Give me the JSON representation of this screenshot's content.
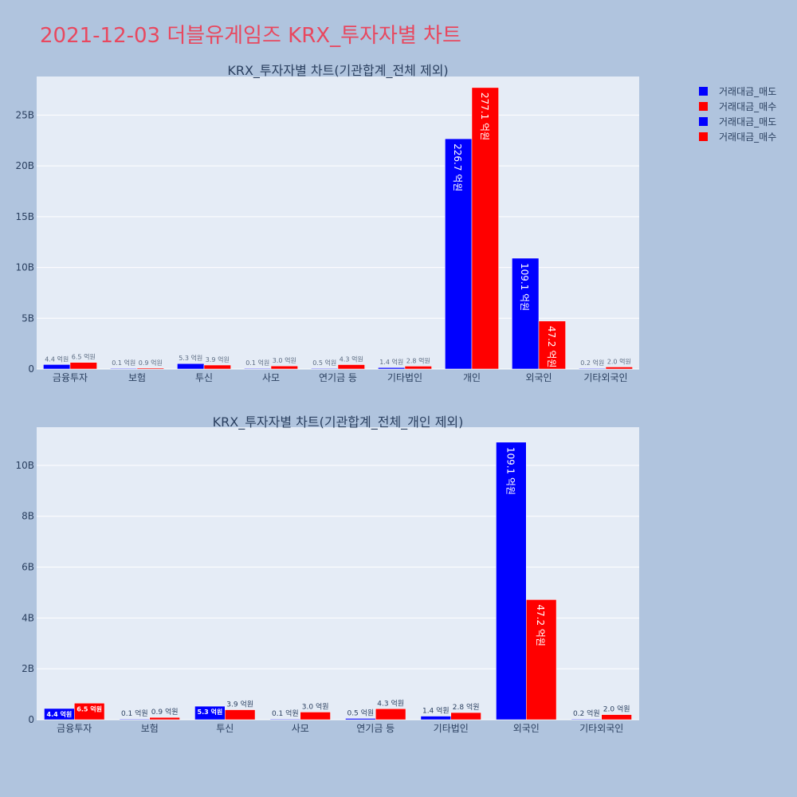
{
  "page": {
    "title": "2021-12-03 더블유게임즈 KRX_투자자별 차트"
  },
  "legend": [
    {
      "label": "거래대금_매도",
      "color": "#0000ff"
    },
    {
      "label": "거래대금_매수",
      "color": "#ff0000"
    },
    {
      "label": "거래대금_매도",
      "color": "#0000ff"
    },
    {
      "label": "거래대금_매수",
      "color": "#ff0000"
    }
  ],
  "chart_data": [
    {
      "type": "bar",
      "title": "KRX_투자자별 차트(기관합계_전체 제외)",
      "categories": [
        "금융투자",
        "보험",
        "투신",
        "사모",
        "연기금 등",
        "기타법인",
        "개인",
        "외국인",
        "기타외국인"
      ],
      "ylim": [
        0,
        28.8
      ],
      "yticks": [
        0,
        5,
        10,
        15,
        20,
        25
      ],
      "ytick_labels": [
        "0",
        "5B",
        "10B",
        "15B",
        "20B",
        "25B"
      ],
      "grid": true,
      "series": [
        {
          "name": "거래대금_매도",
          "color": "#0000ff",
          "values": [
            0.44,
            0.01,
            0.53,
            0.01,
            0.05,
            0.14,
            22.67,
            10.91,
            0.02
          ],
          "labels": [
            "4.4 억원",
            "0.1 억원",
            "5.3 억원",
            "0.1 억원",
            "0.5 억원",
            "1.4 억원",
            "226.7 억원",
            "109.1 억원",
            "0.2 억원"
          ]
        },
        {
          "name": "거래대금_매수",
          "color": "#ff0000",
          "values": [
            0.65,
            0.09,
            0.39,
            0.3,
            0.43,
            0.28,
            27.71,
            4.72,
            0.2
          ],
          "labels": [
            "6.5 억원",
            "0.9 억원",
            "3.9 억원",
            "3.0 억원",
            "4.3 억원",
            "2.8 억원",
            "277.1 억원",
            "47.2 억원",
            "2.0 억원"
          ]
        }
      ]
    },
    {
      "type": "bar",
      "title": "KRX_투자자별 차트(기관합계_전체_개인 제외)",
      "categories": [
        "금융투자",
        "보험",
        "투신",
        "사모",
        "연기금 등",
        "기타법인",
        "외국인",
        "기타외국인"
      ],
      "ylim": [
        0,
        11.5
      ],
      "yticks": [
        0,
        2,
        4,
        6,
        8,
        10
      ],
      "ytick_labels": [
        "0",
        "2B",
        "4B",
        "6B",
        "8B",
        "10B"
      ],
      "grid": true,
      "series": [
        {
          "name": "거래대금_매도",
          "color": "#0000ff",
          "values": [
            0.44,
            0.01,
            0.53,
            0.01,
            0.05,
            0.14,
            10.91,
            0.02
          ],
          "labels": [
            "4.4 억원",
            "0.1 억원",
            "5.3 억원",
            "0.1 억원",
            "0.5 억원",
            "1.4 억원",
            "109.1 억원",
            "0.2 억원"
          ]
        },
        {
          "name": "거래대금_매수",
          "color": "#ff0000",
          "values": [
            0.65,
            0.09,
            0.39,
            0.3,
            0.43,
            0.28,
            4.72,
            0.2
          ],
          "labels": [
            "6.5 억원",
            "0.9 억원",
            "3.9 억원",
            "3.0 억원",
            "4.3 억원",
            "2.8 억원",
            "47.2 억원",
            "2.0 억원"
          ]
        }
      ]
    }
  ]
}
